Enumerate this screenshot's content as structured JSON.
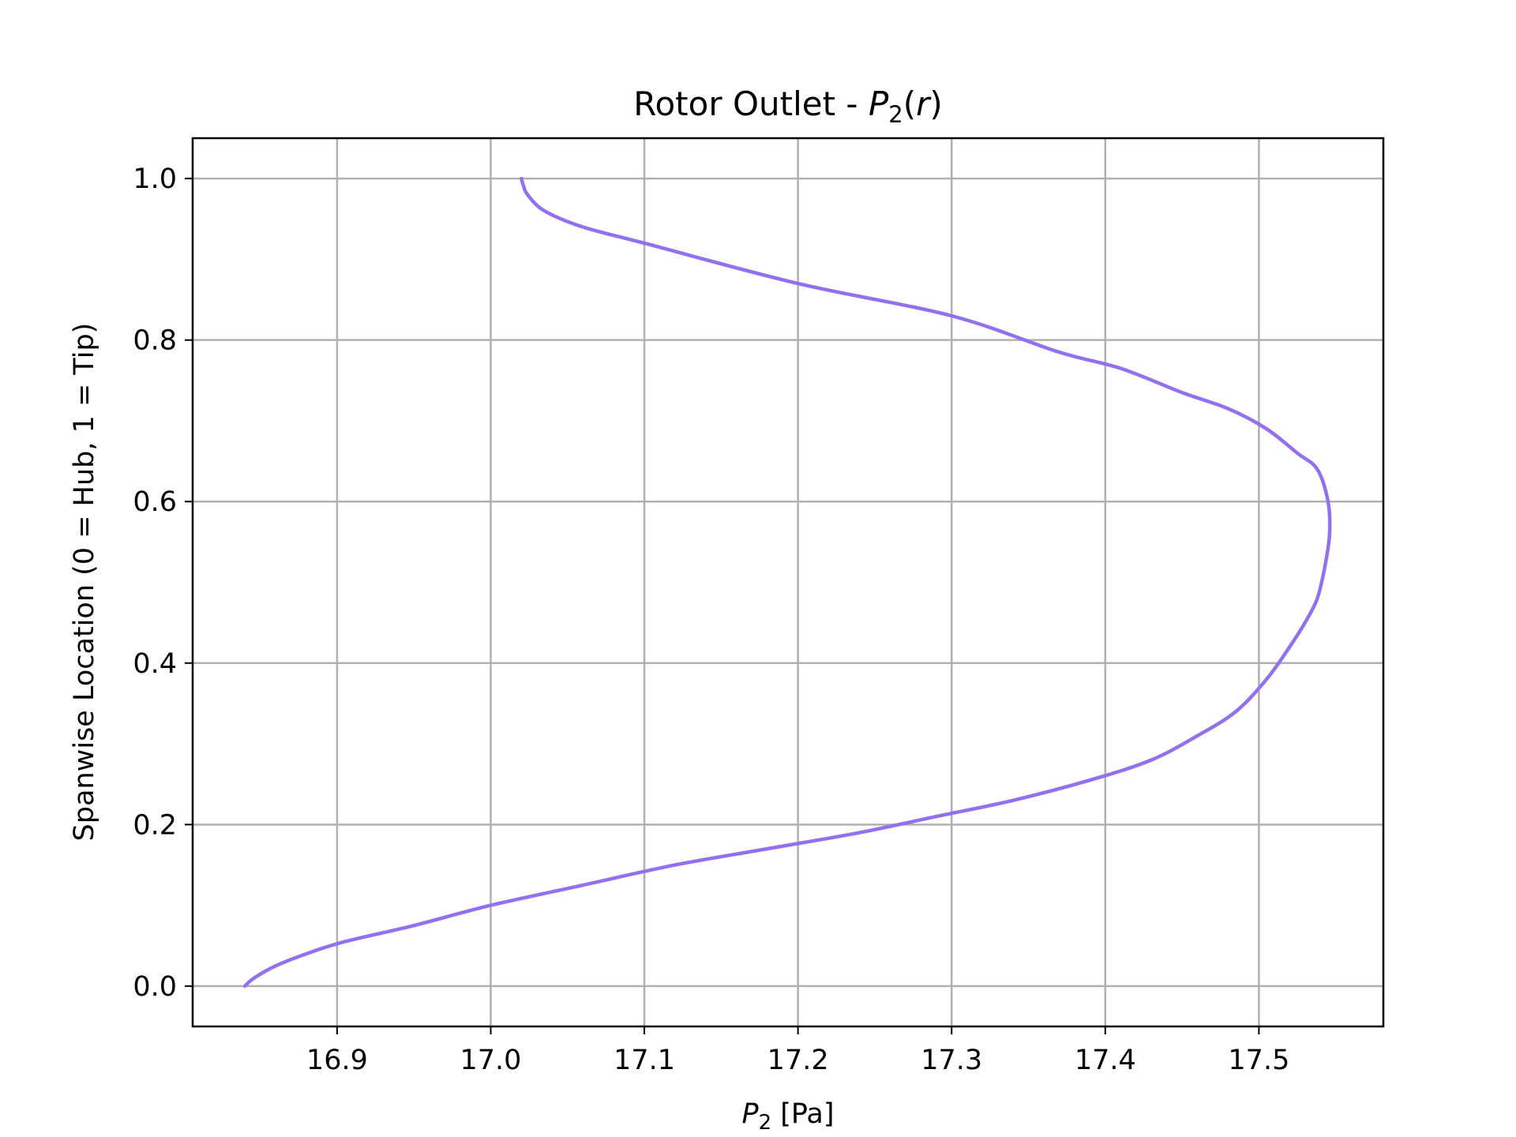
{
  "chart_data": {
    "type": "line",
    "title": {
      "main": "Rotor Outlet - ",
      "var": "P",
      "sub": "2",
      "open": "(",
      "arg": "r",
      "close": ")"
    },
    "xlabel": {
      "var": "P",
      "sub": "2",
      "unit": " [Pa]"
    },
    "ylabel": "Spanwise Location (0 = Hub, 1 = Tip)",
    "xlim": [
      16.806,
      17.581
    ],
    "ylim": [
      -0.05,
      1.05
    ],
    "xticks": [
      16.9,
      17.0,
      17.1,
      17.2,
      17.3,
      17.4,
      17.5
    ],
    "xtick_labels": [
      "16.9",
      "17.0",
      "17.1",
      "17.2",
      "17.3",
      "17.4",
      "17.5"
    ],
    "yticks": [
      0.0,
      0.2,
      0.4,
      0.6,
      0.8,
      1.0
    ],
    "ytick_labels": [
      "0.0",
      "0.2",
      "0.4",
      "0.6",
      "0.8",
      "1.0"
    ],
    "grid": true,
    "line_color": "#9370ee",
    "series": [
      {
        "x": [
          16.84,
          16.846,
          16.86,
          16.88,
          16.905,
          16.95,
          17.0,
          17.06,
          17.12,
          17.18,
          17.24,
          17.29,
          17.34,
          17.39,
          17.43,
          17.46,
          17.485,
          17.505,
          17.52,
          17.53,
          17.538,
          17.543,
          17.546,
          17.545,
          17.538,
          17.525,
          17.505,
          17.48,
          17.45,
          17.41,
          17.37,
          17.3,
          17.2,
          17.1,
          17.06,
          17.035,
          17.024,
          17.021,
          17.02
        ],
        "y": [
          0.0,
          0.01,
          0.025,
          0.04,
          0.055,
          0.075,
          0.1,
          0.125,
          0.15,
          0.17,
          0.19,
          0.21,
          0.23,
          0.255,
          0.28,
          0.31,
          0.34,
          0.38,
          0.42,
          0.45,
          0.48,
          0.52,
          0.56,
          0.6,
          0.64,
          0.66,
          0.69,
          0.715,
          0.735,
          0.765,
          0.785,
          0.83,
          0.87,
          0.92,
          0.94,
          0.96,
          0.98,
          0.993,
          1.0
        ]
      }
    ]
  }
}
